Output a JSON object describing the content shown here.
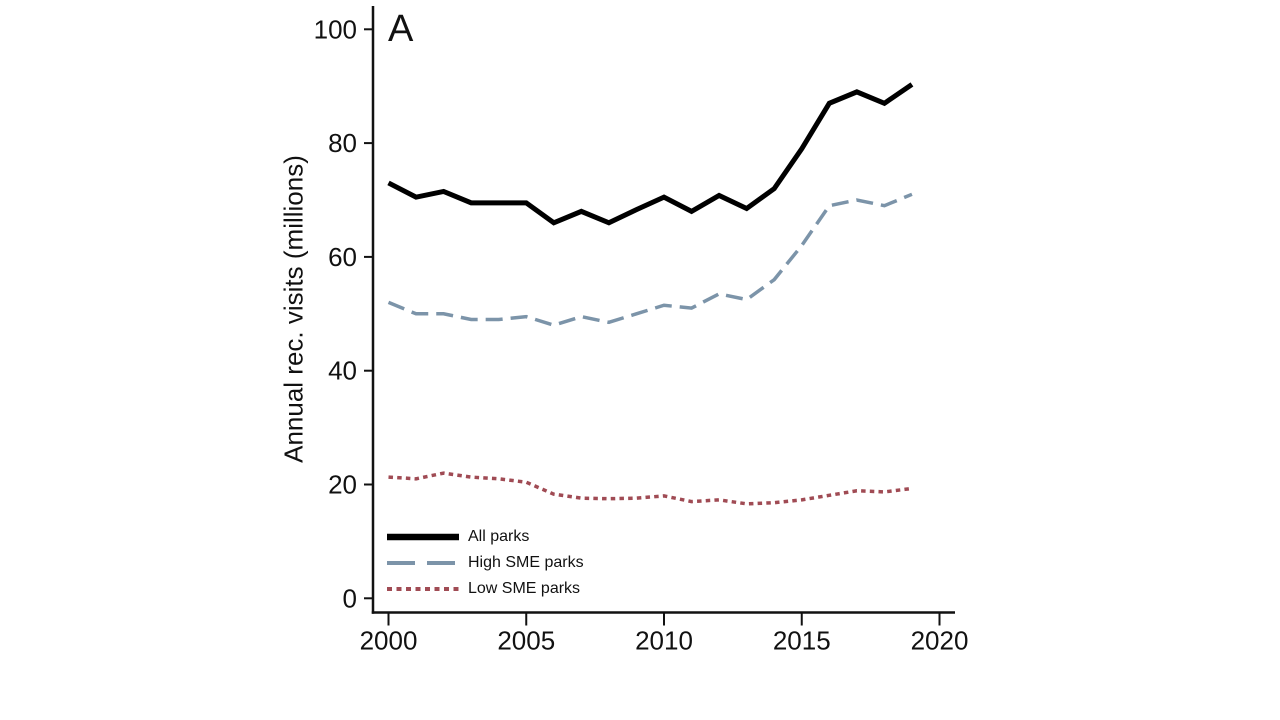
{
  "panel_label": "A",
  "chart_data": {
    "type": "line",
    "title": "",
    "xlabel": "",
    "ylabel": "Annual rec. visits (millions)",
    "xlim": [
      2000,
      2020
    ],
    "ylim": [
      0,
      100
    ],
    "x_ticks": [
      2000,
      2005,
      2010,
      2015,
      2020
    ],
    "y_ticks": [
      0,
      20,
      40,
      60,
      80,
      100
    ],
    "grid": "off",
    "legend_position": "bottom-left-inside",
    "x": [
      2000,
      2001,
      2002,
      2003,
      2004,
      2005,
      2006,
      2007,
      2008,
      2009,
      2010,
      2011,
      2012,
      2013,
      2014,
      2015,
      2016,
      2017,
      2018,
      2019
    ],
    "series": [
      {
        "name": "All parks",
        "color": "#000000",
        "dash": "solid",
        "width": 5,
        "values": [
          73.0,
          70.5,
          71.5,
          69.5,
          69.5,
          69.5,
          66.0,
          68.0,
          66.0,
          68.3,
          70.5,
          68.0,
          70.8,
          68.5,
          72.0,
          79.0,
          87.0,
          89.0,
          87.0,
          90.3
        ]
      },
      {
        "name": "High SME parks",
        "color": "#7c94a9",
        "dash": "long-dash",
        "width": 3.5,
        "values": [
          52.0,
          50.0,
          50.0,
          49.0,
          49.0,
          49.5,
          48.0,
          49.5,
          48.5,
          50.0,
          51.5,
          51.0,
          53.5,
          52.5,
          56.0,
          62.0,
          69.0,
          70.0,
          69.0,
          71.0
        ]
      },
      {
        "name": "Low SME parks",
        "color": "#a04b54",
        "dash": "dot",
        "width": 3.5,
        "values": [
          21.3,
          21.0,
          22.0,
          21.3,
          21.0,
          20.4,
          18.3,
          17.6,
          17.5,
          17.6,
          18.0,
          17.0,
          17.3,
          16.6,
          16.8,
          17.3,
          18.1,
          18.9,
          18.7,
          19.3
        ]
      }
    ]
  }
}
